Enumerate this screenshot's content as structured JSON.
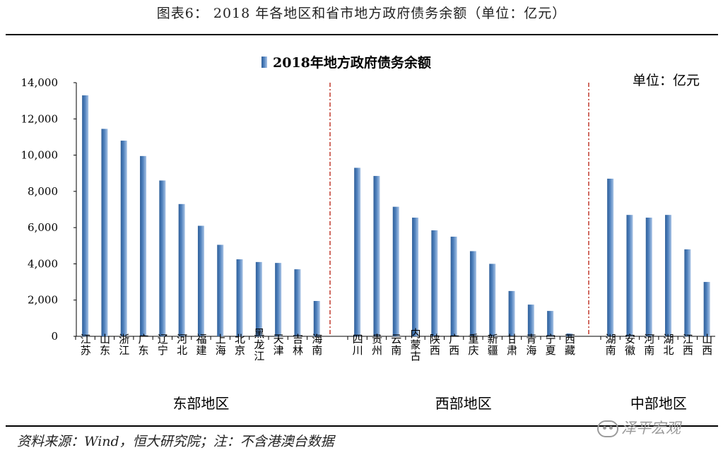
{
  "figure": {
    "caption": "图表6： 2018 年各地区和省市地方政府债务余额（单位：亿元）",
    "source_note": "资料来源：Wind，恒大研究院；注：不含港澳台数据",
    "watermark": "泽平宏观"
  },
  "chart_data": {
    "type": "bar",
    "title": "2018年地方政府债务余额",
    "unit_label": "单位：亿元",
    "legend": [
      "2018年地方政府债务余额"
    ],
    "ylim": [
      0,
      14000
    ],
    "yticks": [
      0,
      2000,
      4000,
      6000,
      8000,
      10000,
      12000,
      14000
    ],
    "ytick_labels": [
      "0",
      "2,000",
      "4,000",
      "6,000",
      "8,000",
      "10,000",
      "12,000",
      "14,000"
    ],
    "series_color": "#4f81bd",
    "divider_color": "#c0392b",
    "groups": [
      {
        "name": "东部地区",
        "categories": [
          "江苏",
          "山东",
          "浙江",
          "广东",
          "辽宁",
          "河北",
          "福建",
          "上海",
          "北京",
          "黑龙江",
          "天津",
          "吉林",
          "海南"
        ],
        "values": [
          13300,
          11450,
          10800,
          9950,
          8600,
          7300,
          6100,
          5050,
          4250,
          4100,
          4050,
          3700,
          1950
        ]
      },
      {
        "name": "西部地区",
        "categories": [
          "四川",
          "贵州",
          "云南",
          "内蒙古",
          "陕西",
          "广西",
          "重庆",
          "新疆",
          "甘肃",
          "青海",
          "宁夏",
          "西藏"
        ],
        "values": [
          9300,
          8850,
          7150,
          6550,
          5850,
          5500,
          4700,
          4000,
          2500,
          1750,
          1400,
          150
        ]
      },
      {
        "name": "中部地区",
        "categories": [
          "湖南",
          "安徽",
          "河南",
          "湖北",
          "江西",
          "山西"
        ],
        "values": [
          8700,
          6700,
          6550,
          6700,
          4800,
          3000
        ]
      }
    ]
  }
}
